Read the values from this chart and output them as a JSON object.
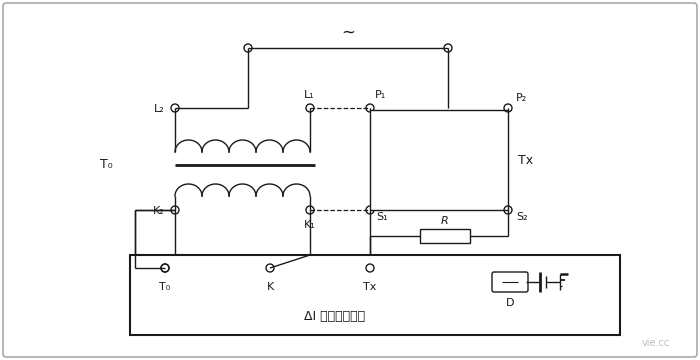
{
  "bg_color": "#f0f0f0",
  "line_color": "#1a1a1a",
  "title": "ΔI 误差测量装置",
  "labels": {
    "L2": "L₂",
    "L1": "L₁",
    "P1": "P₁",
    "P2": "P₂",
    "T0": "T₀",
    "Tx": "Tx",
    "K2": "K₂",
    "K1": "K₁",
    "S1": "S₁",
    "S2": "S₂",
    "R": "R",
    "D": "D",
    "tilde": "~",
    "box_T0": "T₀",
    "box_K": "K",
    "box_Tx": "Tx"
  },
  "fig_width": 7.0,
  "fig_height": 3.6,
  "dpi": 100
}
